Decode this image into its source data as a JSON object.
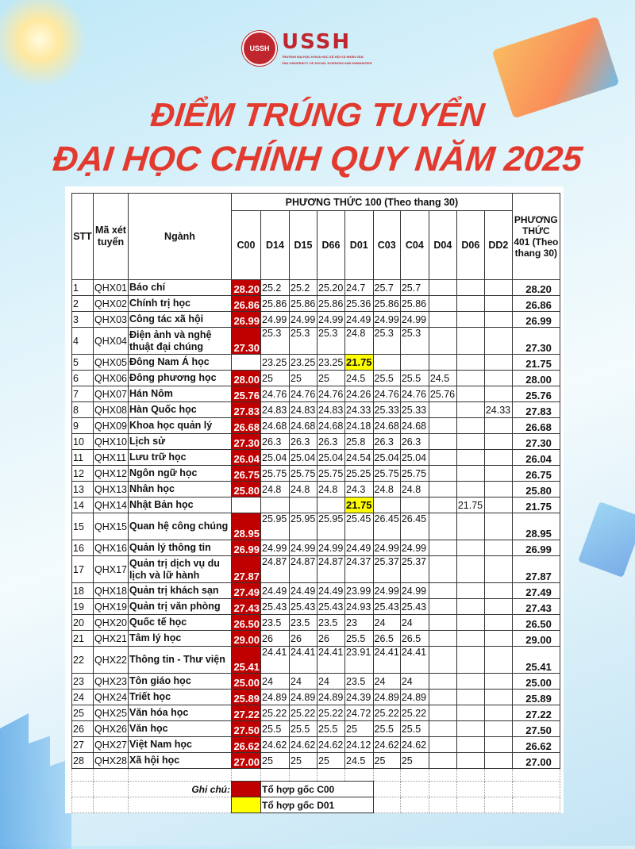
{
  "logo": {
    "name": "USSH",
    "line1": "TRƯỜNG ĐẠI HỌC KHOA HỌC XÃ HỘI VÀ NHÂN VĂN",
    "line2": "VNU UNIVERSITY OF SOCIAL SCIENCES AND HUMANITIES",
    "seal": "USSH"
  },
  "title": {
    "line1": "ĐIỂM TRÚNG TUYỂN",
    "line2": "ĐẠI HỌC CHÍNH QUY NĂM 2025"
  },
  "colors": {
    "title": "#e23a2e",
    "c00_highlight": "#c00000",
    "d01_highlight": "#ffff00"
  },
  "table": {
    "headers": {
      "stt": "STT",
      "code": "Mã xét tuyển",
      "major": "Ngành",
      "method100": "PHƯƠNG THỨC 100 (Theo thang 30)",
      "method401": "PHƯƠNG THỨC 401 (Theo thang 30)",
      "combos": [
        "C00",
        "D14",
        "D15",
        "D66",
        "D01",
        "C03",
        "C04",
        "D04",
        "D06",
        "DD2"
      ]
    },
    "rows": [
      [
        "1",
        "QHX01",
        "Báo chí",
        "28.20",
        "25.2",
        "25.2",
        "25.20",
        "24.7",
        "25.7",
        "25.7",
        "",
        "",
        "",
        "28.20"
      ],
      [
        "2",
        "QHX02",
        "Chính trị học",
        "26.86",
        "25.86",
        "25.86",
        "25.86",
        "25.36",
        "25.86",
        "25.86",
        "",
        "",
        "",
        "26.86"
      ],
      [
        "3",
        "QHX03",
        "Công tác xã hội",
        "26.99",
        "24.99",
        "24.99",
        "24.99",
        "24.49",
        "24.99",
        "24.99",
        "",
        "",
        "",
        "26.99"
      ],
      [
        "4",
        "QHX04",
        "Điện ảnh và nghệ thuật đại chúng",
        "27.30",
        "25.3",
        "25.3",
        "25.3",
        "24.8",
        "25.3",
        "25.3",
        "",
        "",
        "",
        "27.30"
      ],
      [
        "5",
        "QHX05",
        "Đông Nam Á học",
        "",
        "23.25",
        "23.25",
        "23.25",
        "21.75",
        "",
        "",
        "",
        "",
        "",
        "21.75"
      ],
      [
        "6",
        "QHX06",
        "Đông phương học",
        "28.00",
        "25",
        "25",
        "25",
        "24.5",
        "25.5",
        "25.5",
        "24.5",
        "",
        "",
        "28.00"
      ],
      [
        "7",
        "QHX07",
        "Hán Nôm",
        "25.76",
        "24.76",
        "24.76",
        "24.76",
        "24.26",
        "24.76",
        "24.76",
        "25.76",
        "",
        "",
        "25.76"
      ],
      [
        "8",
        "QHX08",
        "Hàn Quốc học",
        "27.83",
        "24.83",
        "24.83",
        "24.83",
        "24.33",
        "25.33",
        "25.33",
        "",
        "",
        "24.33",
        "27.83"
      ],
      [
        "9",
        "QHX09",
        "Khoa học quản lý",
        "26.68",
        "24.68",
        "24.68",
        "24.68",
        "24.18",
        "24.68",
        "24.68",
        "",
        "",
        "",
        "26.68"
      ],
      [
        "10",
        "QHX10",
        "Lịch sử",
        "27.30",
        "26.3",
        "26.3",
        "26.3",
        "25.8",
        "26.3",
        "26.3",
        "",
        "",
        "",
        "27.30"
      ],
      [
        "11",
        "QHX11",
        "Lưu trữ học",
        "26.04",
        "25.04",
        "25.04",
        "25.04",
        "24.54",
        "25.04",
        "25.04",
        "",
        "",
        "",
        "26.04"
      ],
      [
        "12",
        "QHX12",
        "Ngôn ngữ học",
        "26.75",
        "25.75",
        "25.75",
        "25.75",
        "25.25",
        "25.75",
        "25.75",
        "",
        "",
        "",
        "26.75"
      ],
      [
        "13",
        "QHX13",
        "Nhân học",
        "25.80",
        "24.8",
        "24.8",
        "24.8",
        "24.3",
        "24.8",
        "24.8",
        "",
        "",
        "",
        "25.80"
      ],
      [
        "14",
        "QHX14",
        "Nhật Bản học",
        "",
        "",
        "",
        "",
        "21.75",
        "",
        "",
        "",
        "21.75",
        "",
        "21.75"
      ],
      [
        "15",
        "QHX15",
        "Quan hệ công chúng",
        "28.95",
        "25.95",
        "25.95",
        "25.95",
        "25.45",
        "26.45",
        "26.45",
        "",
        "",
        "",
        "28.95"
      ],
      [
        "16",
        "QHX16",
        "Quản lý thông tin",
        "26.99",
        "24.99",
        "24.99",
        "24.99",
        "24.49",
        "24.99",
        "24.99",
        "",
        "",
        "",
        "26.99"
      ],
      [
        "17",
        "QHX17",
        "Quản trị dịch vụ du lịch và lữ hành",
        "27.87",
        "24.87",
        "24.87",
        "24.87",
        "24.37",
        "25.37",
        "25.37",
        "",
        "",
        "",
        "27.87"
      ],
      [
        "18",
        "QHX18",
        "Quản trị khách sạn",
        "27.49",
        "24.49",
        "24.49",
        "24.49",
        "23.99",
        "24.99",
        "24.99",
        "",
        "",
        "",
        "27.49"
      ],
      [
        "19",
        "QHX19",
        "Quản trị văn phòng",
        "27.43",
        "25.43",
        "25.43",
        "25.43",
        "24.93",
        "25.43",
        "25.43",
        "",
        "",
        "",
        "27.43"
      ],
      [
        "20",
        "QHX20",
        "Quốc tế học",
        "26.50",
        "23.5",
        "23.5",
        "23.5",
        "23",
        "24",
        "24",
        "",
        "",
        "",
        "26.50"
      ],
      [
        "21",
        "QHX21",
        "Tâm lý học",
        "29.00",
        "26",
        "26",
        "26",
        "25.5",
        "26.5",
        "26.5",
        "",
        "",
        "",
        "29.00"
      ],
      [
        "22",
        "QHX22",
        "Thông tin - Thư viện",
        "25.41",
        "24.41",
        "24.41",
        "24.41",
        "23.91",
        "24.41",
        "24.41",
        "",
        "",
        "",
        "25.41"
      ],
      [
        "23",
        "QHX23",
        "Tôn giáo học",
        "25.00",
        "24",
        "24",
        "24",
        "23.5",
        "24",
        "24",
        "",
        "",
        "",
        "25.00"
      ],
      [
        "24",
        "QHX24",
        "Triết học",
        "25.89",
        "24.89",
        "24.89",
        "24.89",
        "24.39",
        "24.89",
        "24.89",
        "",
        "",
        "",
        "25.89"
      ],
      [
        "25",
        "QHX25",
        "Văn hóa học",
        "27.22",
        "25.22",
        "25.22",
        "25.22",
        "24.72",
        "25.22",
        "25.22",
        "",
        "",
        "",
        "27.22"
      ],
      [
        "26",
        "QHX26",
        "Văn học",
        "27.50",
        "25.5",
        "25.5",
        "25.5",
        "25",
        "25.5",
        "25.5",
        "",
        "",
        "",
        "27.50"
      ],
      [
        "27",
        "QHX27",
        "Việt Nam học",
        "26.62",
        "24.62",
        "24.62",
        "24.62",
        "24.12",
        "24.62",
        "24.62",
        "",
        "",
        "",
        "26.62"
      ],
      [
        "28",
        "QHX28",
        "Xã hội học",
        "27.00",
        "25",
        "25",
        "25",
        "24.5",
        "25",
        "25",
        "",
        "",
        "",
        "27.00"
      ]
    ],
    "tall_rows": [
      4,
      15,
      17,
      22
    ],
    "d01_highlight_rows": [
      5,
      14
    ]
  },
  "notes": {
    "label": "Ghi chú:",
    "legend": [
      {
        "color": "#c00000",
        "text": "Tổ hợp gốc C00"
      },
      {
        "color": "#ffff00",
        "text": "Tổ hợp gốc D01"
      }
    ]
  }
}
